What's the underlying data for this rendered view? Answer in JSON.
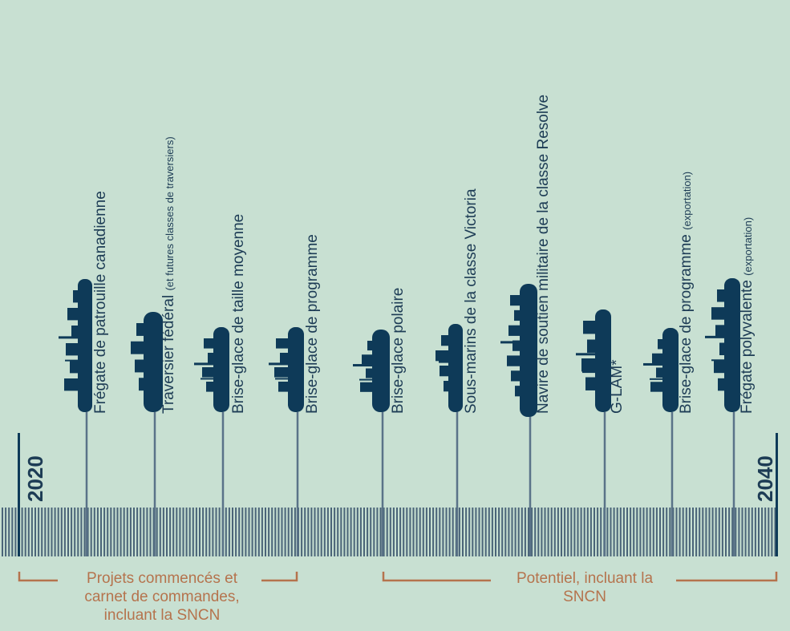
{
  "colors": {
    "background": "#c8e0d2",
    "ship": "#0e3a58",
    "stem": "#5a7388",
    "text": "#1d3c55",
    "bracket": "#b5734d",
    "ticks": "#4a6478"
  },
  "timeline": {
    "start_year": "2020",
    "end_year": "2040"
  },
  "ships": [
    {
      "label": "Frégate de patrouille canadienne",
      "note": "",
      "icon": "frigate-silhouette"
    },
    {
      "label": "Traversier fédéral",
      "note": "(et futures classes de traversiers)",
      "icon": "ferry-silhouette"
    },
    {
      "label": "Brise-glace de taille moyenne",
      "note": "",
      "icon": "icebreaker-silhouette"
    },
    {
      "label": "Brise-glace de programme",
      "note": "",
      "icon": "icebreaker-silhouette"
    },
    {
      "label": "Brise-glace polaire",
      "note": "",
      "icon": "polar-icebreaker-silhouette"
    },
    {
      "label": "Sous-marins de la classe Victoria",
      "note": "",
      "icon": "submarine-silhouette"
    },
    {
      "label": "Navire de soutien militaire de la classe Resolve",
      "note": "",
      "icon": "support-ship-silhouette"
    },
    {
      "label": "G-LAM*",
      "note": "",
      "icon": "g-lam-silhouette"
    },
    {
      "label": "Brise-glace de programme",
      "note": "(exportation)",
      "icon": "icebreaker-silhouette"
    },
    {
      "label": "Frégate polyvalente",
      "note": "(exportation)",
      "icon": "frigate-silhouette"
    }
  ],
  "brackets": {
    "left": "Projets commencés et carnet de commandes, incluant la SNCN",
    "right": "Potentiel, incluant la SNCN"
  }
}
